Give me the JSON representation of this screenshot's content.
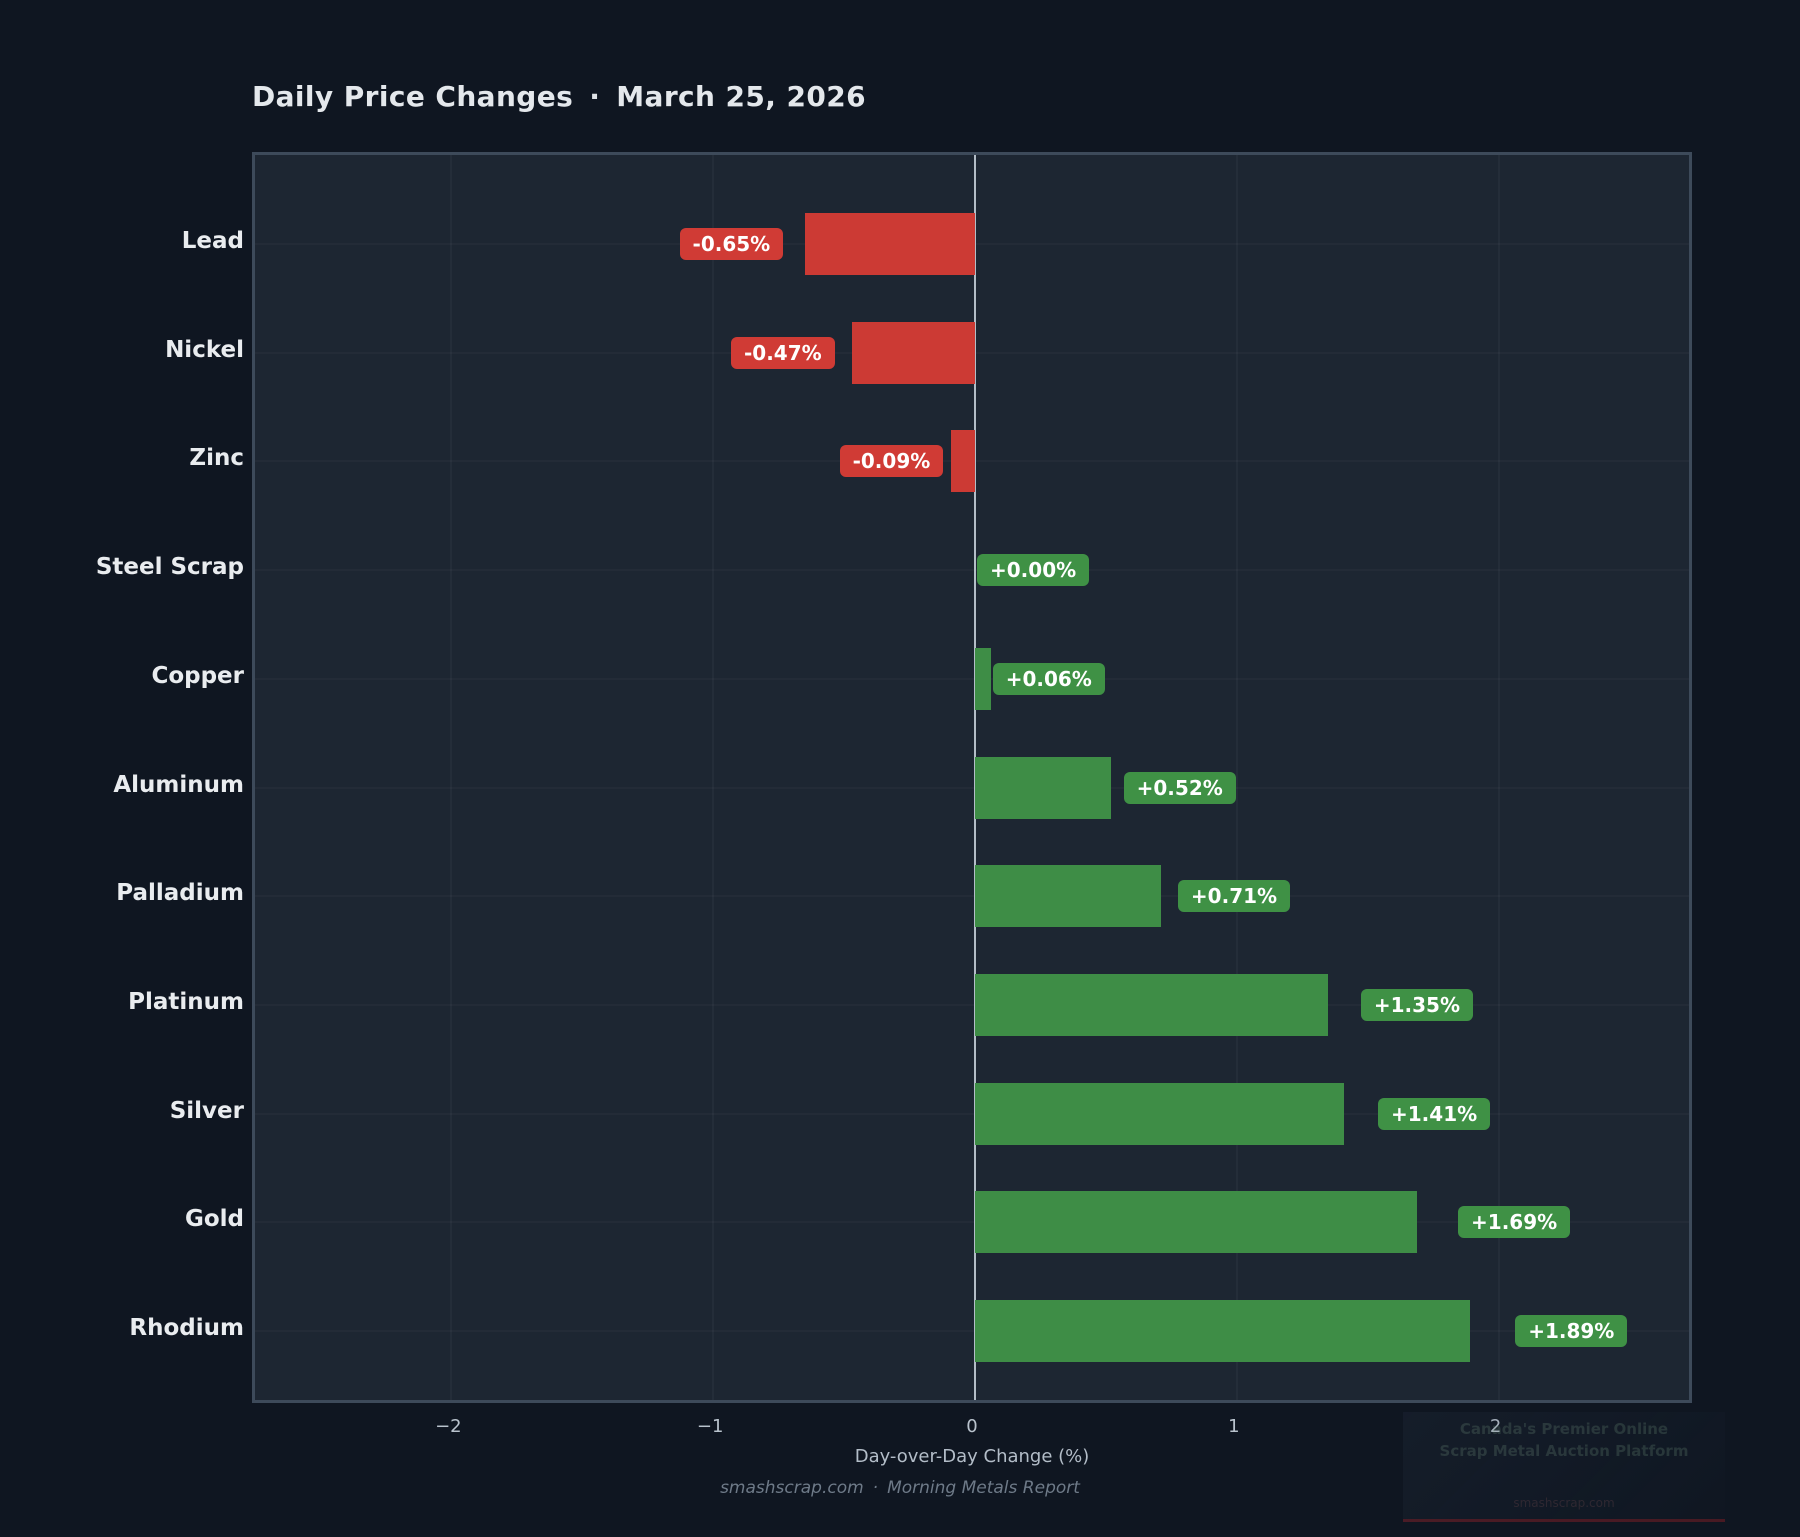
{
  "header": {
    "title": "Daily Price Changes",
    "separator": "·",
    "date": "March 25, 2026"
  },
  "chart_data": {
    "type": "bar",
    "orientation": "horizontal",
    "title": "Daily Price Changes · March 25, 2026",
    "categories": [
      "Lead",
      "Nickel",
      "Zinc",
      "Steel Scrap",
      "Copper",
      "Aluminum",
      "Palladium",
      "Platinum",
      "Silver",
      "Gold",
      "Rhodium"
    ],
    "values": [
      -0.65,
      -0.47,
      -0.09,
      0.0,
      0.06,
      0.52,
      0.71,
      1.35,
      1.41,
      1.69,
      1.89
    ],
    "value_labels": [
      "-0.65%",
      "-0.47%",
      "-0.09%",
      "+0.00%",
      "+0.06%",
      "+0.52%",
      "+0.71%",
      "+1.35%",
      "+1.41%",
      "+1.69%",
      "+1.89%"
    ],
    "xlabel": "Day-over-Day Change (%)",
    "x_ticks": [
      -2,
      -1,
      0,
      1,
      2
    ],
    "x_tick_labels": [
      "−2",
      "−1",
      "0",
      "1",
      "2"
    ],
    "xlim": [
      -2.75,
      2.75
    ],
    "grid": true,
    "legend": null,
    "colors": {
      "positive": "#3e8d46",
      "negative": "#cc3a34",
      "positive_badge": "#3f9145",
      "negative_badge": "#d03b35",
      "zero_line": "#b3bdc7"
    }
  },
  "footer": {
    "site": "smashscrap.com",
    "separator": "·",
    "report": "Morning Metals Report"
  },
  "watermark": {
    "line1": "Canada's Premier Online",
    "line2": "Scrap Metal Auction Platform",
    "site": "smashscrap.com"
  }
}
